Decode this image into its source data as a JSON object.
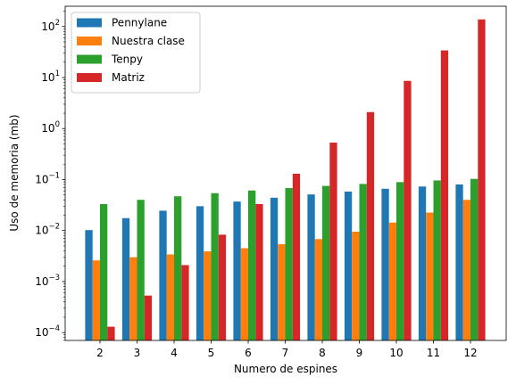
{
  "chart_data": {
    "type": "bar",
    "title": "",
    "xlabel": "Numero de espines",
    "ylabel": "Uso de memoria (mb)",
    "yscale": "log",
    "ylim": [
      7e-05,
      250
    ],
    "legend_position": "top-left",
    "grid": false,
    "categories": [
      "2",
      "3",
      "4",
      "5",
      "6",
      "7",
      "8",
      "9",
      "10",
      "11",
      "12"
    ],
    "y_ticks": [
      {
        "value": 0.0001,
        "base": "10",
        "exp": "−4"
      },
      {
        "value": 0.001,
        "base": "10",
        "exp": "−3"
      },
      {
        "value": 0.01,
        "base": "10",
        "exp": "−2"
      },
      {
        "value": 0.1,
        "base": "10",
        "exp": "−1"
      },
      {
        "value": 1,
        "base": "10",
        "exp": "0"
      },
      {
        "value": 10,
        "base": "10",
        "exp": "1"
      },
      {
        "value": 100,
        "base": "10",
        "exp": "2"
      }
    ],
    "series": [
      {
        "name": "Pennylane",
        "color": "#1f77b4",
        "values": [
          0.0102,
          0.0175,
          0.0245,
          0.03,
          0.037,
          0.044,
          0.051,
          0.058,
          0.066,
          0.073,
          0.08
        ]
      },
      {
        "name": "Nuestra clase",
        "color": "#ff7f0e",
        "values": [
          0.0026,
          0.003,
          0.0034,
          0.0039,
          0.0045,
          0.0054,
          0.0068,
          0.0095,
          0.0143,
          0.0225,
          0.04
        ]
      },
      {
        "name": "Tenpy",
        "color": "#2ca02c",
        "values": [
          0.033,
          0.04,
          0.047,
          0.054,
          0.061,
          0.068,
          0.075,
          0.082,
          0.089,
          0.096,
          0.103
        ]
      },
      {
        "name": "Matriz",
        "color": "#d62728",
        "values": [
          0.00013,
          0.00053,
          0.0021,
          0.0083,
          0.033,
          0.13,
          0.53,
          2.1,
          8.6,
          34.0,
          138.0
        ]
      }
    ]
  }
}
